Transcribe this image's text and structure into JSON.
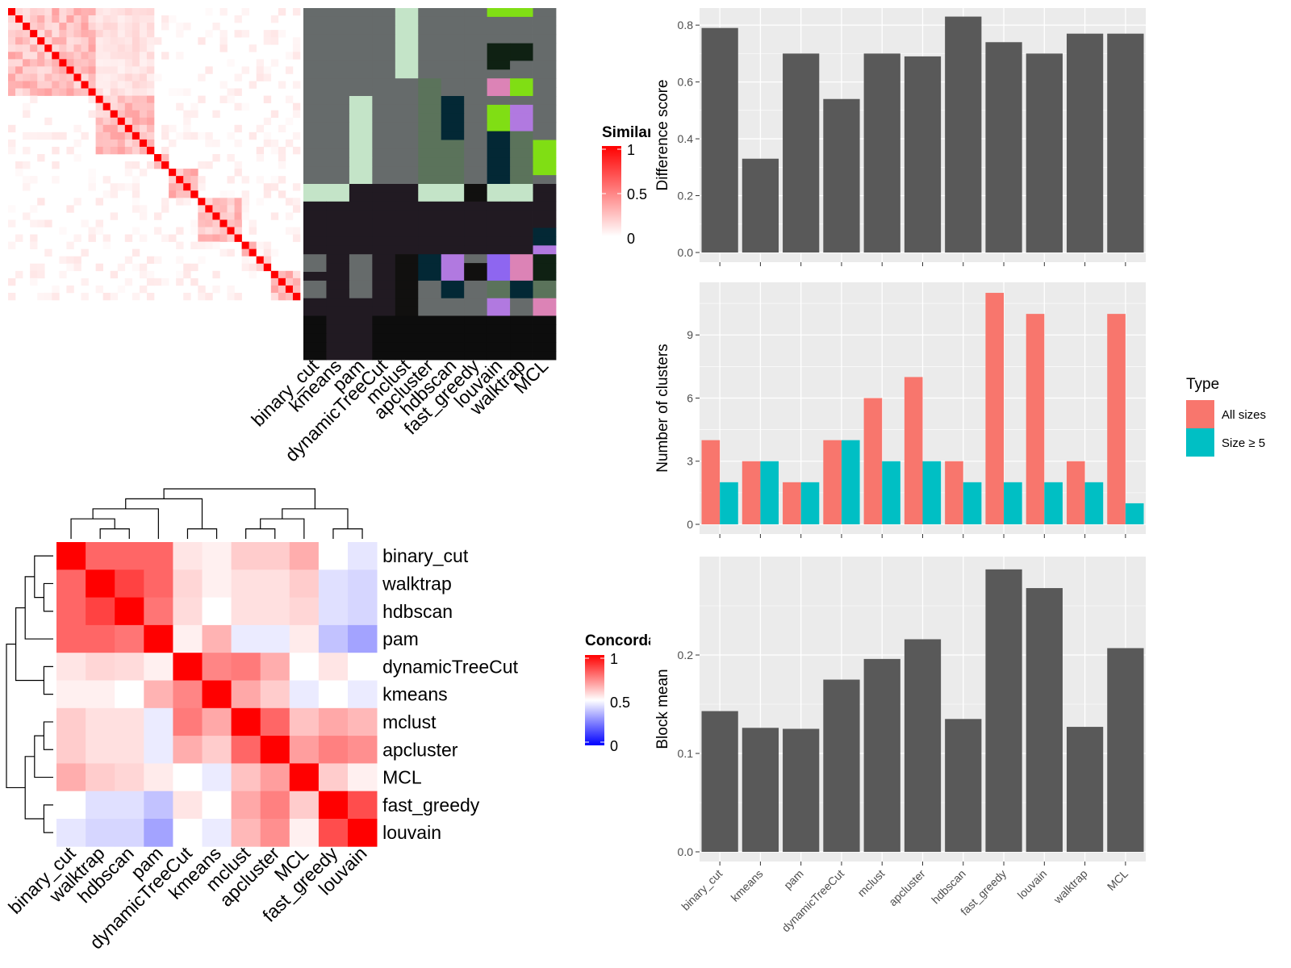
{
  "methods": [
    "binary_cut",
    "kmeans",
    "pam",
    "dynamicTreeCut",
    "mclust",
    "apcluster",
    "hdbscan",
    "fast_greedy",
    "louvain",
    "walktrap",
    "MCL"
  ],
  "similarity_heatmap": {
    "legend_title": "Similarity",
    "legend_ticks": [
      "1",
      "0.5",
      "0"
    ],
    "low_color": "#ffffff",
    "high_color": "#ff0000",
    "n_terms": 40,
    "groups": [
      [
        0,
        12
      ],
      [
        12,
        20
      ],
      [
        20,
        22
      ],
      [
        22,
        26
      ],
      [
        26,
        32
      ],
      [
        32,
        34
      ],
      [
        34,
        36
      ],
      [
        36,
        40
      ]
    ]
  },
  "partition_matrix": {
    "palette": [
      "#666b6b",
      "#c4e4c8",
      "#211a22",
      "#80de14",
      "#0f2113",
      "#dc83b6",
      "#032835",
      "#5b735b",
      "#b179e0",
      "#11100f",
      "#8e66f0",
      "#0d0d0d"
    ],
    "grid_note": "rows = terms (40), cols = methods",
    "cells": [
      [
        0,
        0,
        0,
        0,
        1,
        0,
        0,
        0,
        3,
        3,
        0
      ],
      [
        0,
        0,
        0,
        0,
        1,
        0,
        0,
        0,
        0,
        0,
        0
      ],
      [
        0,
        0,
        0,
        0,
        1,
        0,
        0,
        0,
        0,
        0,
        0
      ],
      [
        0,
        0,
        0,
        0,
        1,
        0,
        0,
        0,
        0,
        0,
        0
      ],
      [
        0,
        0,
        0,
        0,
        1,
        0,
        0,
        0,
        4,
        4,
        0
      ],
      [
        0,
        0,
        0,
        0,
        1,
        0,
        0,
        0,
        4,
        4,
        0
      ],
      [
        0,
        0,
        0,
        0,
        1,
        0,
        0,
        0,
        4,
        0,
        0
      ],
      [
        0,
        0,
        0,
        0,
        1,
        0,
        0,
        0,
        0,
        0,
        0
      ],
      [
        0,
        0,
        0,
        0,
        0,
        7,
        0,
        0,
        5,
        3,
        0
      ],
      [
        0,
        0,
        0,
        0,
        0,
        7,
        0,
        0,
        5,
        3,
        0
      ],
      [
        0,
        0,
        1,
        0,
        0,
        7,
        6,
        0,
        0,
        0,
        0
      ],
      [
        0,
        0,
        1,
        0,
        0,
        7,
        6,
        0,
        3,
        8,
        0
      ],
      [
        0,
        0,
        1,
        0,
        0,
        7,
        6,
        0,
        3,
        8,
        0
      ],
      [
        0,
        0,
        1,
        0,
        0,
        7,
        6,
        0,
        3,
        8,
        0
      ],
      [
        0,
        0,
        1,
        0,
        0,
        7,
        6,
        0,
        6,
        7,
        0
      ],
      [
        0,
        0,
        1,
        0,
        0,
        7,
        7,
        0,
        6,
        7,
        3
      ],
      [
        0,
        0,
        1,
        0,
        0,
        7,
        7,
        0,
        6,
        7,
        3
      ],
      [
        0,
        0,
        1,
        0,
        0,
        7,
        7,
        0,
        6,
        7,
        3
      ],
      [
        0,
        0,
        1,
        0,
        0,
        7,
        7,
        0,
        6,
        7,
        3
      ],
      [
        0,
        0,
        1,
        0,
        0,
        7,
        7,
        0,
        6,
        7,
        0
      ],
      [
        1,
        1,
        2,
        2,
        2,
        1,
        1,
        9,
        1,
        1,
        2
      ],
      [
        1,
        1,
        2,
        2,
        2,
        1,
        1,
        9,
        1,
        1,
        2
      ],
      [
        2,
        2,
        2,
        2,
        2,
        2,
        2,
        2,
        2,
        2,
        2
      ],
      [
        2,
        2,
        2,
        2,
        2,
        2,
        2,
        2,
        2,
        2,
        2
      ],
      [
        2,
        2,
        2,
        2,
        2,
        2,
        2,
        2,
        2,
        2,
        2
      ],
      [
        2,
        2,
        2,
        2,
        2,
        2,
        2,
        2,
        2,
        2,
        6
      ],
      [
        2,
        2,
        2,
        2,
        2,
        2,
        2,
        2,
        2,
        2,
        6
      ],
      [
        2,
        2,
        2,
        2,
        2,
        2,
        2,
        2,
        2,
        2,
        8
      ],
      [
        0,
        2,
        0,
        2,
        9,
        6,
        8,
        0,
        10,
        5,
        4
      ],
      [
        0,
        2,
        0,
        2,
        9,
        6,
        8,
        9,
        10,
        5,
        4
      ],
      [
        2,
        2,
        0,
        2,
        9,
        6,
        8,
        9,
        10,
        5,
        4
      ],
      [
        0,
        2,
        0,
        2,
        9,
        0,
        6,
        0,
        7,
        6,
        7
      ],
      [
        0,
        2,
        0,
        2,
        9,
        0,
        6,
        0,
        7,
        6,
        7
      ],
      [
        2,
        2,
        2,
        2,
        9,
        0,
        0,
        0,
        8,
        0,
        5
      ],
      [
        2,
        2,
        2,
        2,
        9,
        0,
        0,
        0,
        8,
        0,
        5
      ],
      [
        11,
        2,
        2,
        11,
        11,
        11,
        11,
        11,
        11,
        11,
        11
      ],
      [
        11,
        2,
        2,
        11,
        11,
        11,
        11,
        11,
        11,
        11,
        11
      ],
      [
        11,
        2,
        2,
        11,
        11,
        11,
        11,
        11,
        11,
        11,
        11
      ],
      [
        11,
        2,
        2,
        11,
        11,
        11,
        11,
        11,
        11,
        11,
        11
      ],
      [
        11,
        2,
        2,
        11,
        11,
        11,
        11,
        11,
        11,
        11,
        11
      ]
    ]
  },
  "concordance_heatmap": {
    "legend_title": "Concordance",
    "legend_ticks": [
      "1",
      "0.5",
      "0"
    ],
    "order": [
      "binary_cut",
      "walktrap",
      "hdbscan",
      "pam",
      "dynamicTreeCut",
      "kmeans",
      "mclust",
      "apcluster",
      "MCL",
      "fast_greedy",
      "louvain"
    ],
    "matrix": [
      [
        1.0,
        0.8,
        0.8,
        0.8,
        0.55,
        0.53,
        0.6,
        0.6,
        0.66,
        0.5,
        0.45
      ],
      [
        0.8,
        1.0,
        0.87,
        0.8,
        0.58,
        0.53,
        0.56,
        0.56,
        0.6,
        0.44,
        0.42
      ],
      [
        0.8,
        0.87,
        1.0,
        0.77,
        0.57,
        0.5,
        0.56,
        0.56,
        0.58,
        0.44,
        0.42
      ],
      [
        0.8,
        0.8,
        0.77,
        1.0,
        0.53,
        0.65,
        0.46,
        0.46,
        0.54,
        0.38,
        0.32
      ],
      [
        0.55,
        0.58,
        0.57,
        0.53,
        1.0,
        0.74,
        0.76,
        0.66,
        0.5,
        0.55,
        0.5
      ],
      [
        0.53,
        0.53,
        0.5,
        0.65,
        0.74,
        1.0,
        0.67,
        0.6,
        0.46,
        0.5,
        0.46
      ],
      [
        0.6,
        0.56,
        0.56,
        0.46,
        0.76,
        0.67,
        1.0,
        0.8,
        0.62,
        0.67,
        0.64
      ],
      [
        0.6,
        0.56,
        0.56,
        0.46,
        0.66,
        0.6,
        0.8,
        1.0,
        0.69,
        0.75,
        0.72
      ],
      [
        0.66,
        0.6,
        0.58,
        0.54,
        0.5,
        0.46,
        0.62,
        0.69,
        1.0,
        0.6,
        0.53
      ],
      [
        0.5,
        0.44,
        0.44,
        0.38,
        0.55,
        0.5,
        0.67,
        0.75,
        0.6,
        1.0,
        0.85
      ],
      [
        0.45,
        0.42,
        0.42,
        0.32,
        0.5,
        0.46,
        0.64,
        0.72,
        0.53,
        0.85,
        1.0
      ]
    ]
  },
  "chart_data": [
    {
      "type": "bar",
      "categories": [
        "binary_cut",
        "kmeans",
        "pam",
        "dynamicTreeCut",
        "mclust",
        "apcluster",
        "hdbscan",
        "fast_greedy",
        "louvain",
        "walktrap",
        "MCL"
      ],
      "values": [
        0.79,
        0.33,
        0.7,
        0.54,
        0.7,
        0.69,
        0.83,
        0.74,
        0.7,
        0.77,
        0.77
      ],
      "title": "",
      "xlabel": "",
      "ylabel": "Difference score",
      "ylim": [
        0,
        0.86
      ],
      "yticks": [
        0.0,
        0.2,
        0.4,
        0.6,
        0.8
      ],
      "ytick_labels": [
        "0.0",
        "0.2",
        "0.4",
        "0.6",
        "0.8"
      ],
      "grid": true,
      "bar_color": "#595959"
    },
    {
      "type": "bar",
      "categories": [
        "binary_cut",
        "kmeans",
        "pam",
        "dynamicTreeCut",
        "mclust",
        "apcluster",
        "hdbscan",
        "fast_greedy",
        "louvain",
        "walktrap",
        "MCL"
      ],
      "series": [
        {
          "name": "All sizes",
          "values": [
            4,
            3,
            2,
            4,
            6,
            7,
            3,
            11,
            10,
            3,
            10
          ],
          "color": "#f8766d"
        },
        {
          "name": "Size ≥ 5",
          "values": [
            2,
            3,
            2,
            4,
            3,
            3,
            2,
            2,
            2,
            2,
            1
          ],
          "color": "#00bfc4"
        }
      ],
      "title": "",
      "xlabel": "",
      "ylabel": "Number of clusters",
      "ylim": [
        0,
        11.5
      ],
      "yticks": [
        0,
        3,
        6,
        9
      ],
      "ytick_labels": [
        "0",
        "3",
        "6",
        "9"
      ],
      "legend_title": "Type",
      "legend_position": "right",
      "grid": true
    },
    {
      "type": "bar",
      "categories": [
        "binary_cut",
        "kmeans",
        "pam",
        "dynamicTreeCut",
        "mclust",
        "apcluster",
        "hdbscan",
        "fast_greedy",
        "louvain",
        "walktrap",
        "MCL"
      ],
      "values": [
        0.143,
        0.126,
        0.125,
        0.175,
        0.196,
        0.216,
        0.135,
        0.287,
        0.268,
        0.127,
        0.207
      ],
      "title": "",
      "xlabel": "",
      "ylabel": "Block mean",
      "ylim": [
        0,
        0.3
      ],
      "yticks": [
        0.0,
        0.1,
        0.2
      ],
      "ytick_labels": [
        "0.0",
        "0.1",
        "0.2"
      ],
      "grid": true,
      "bar_color": "#595959"
    }
  ]
}
